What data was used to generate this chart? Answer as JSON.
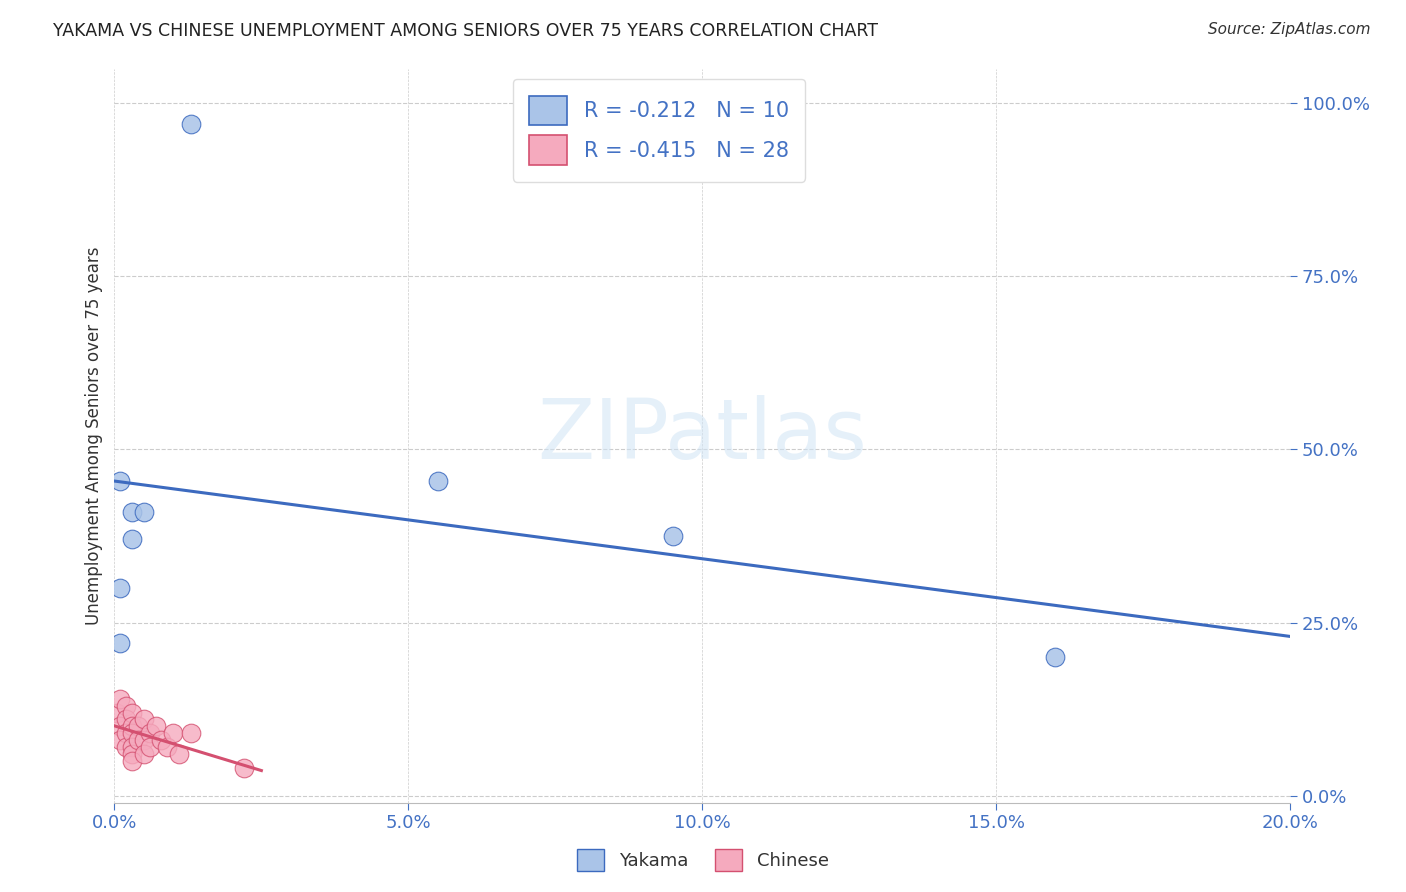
{
  "title": "YAKAMA VS CHINESE UNEMPLOYMENT AMONG SENIORS OVER 75 YEARS CORRELATION CHART",
  "source": "Source: ZipAtlas.com",
  "ylabel": "Unemployment Among Seniors over 75 years",
  "yakama_R": -0.212,
  "yakama_N": 10,
  "chinese_R": -0.415,
  "chinese_N": 28,
  "yakama_color": "#aac4e8",
  "chinese_color": "#f5aabe",
  "yakama_line_color": "#3c6abf",
  "chinese_line_color": "#d45070",
  "yakama_x": [
    0.001,
    0.003,
    0.005,
    0.003,
    0.001,
    0.001,
    0.055,
    0.095,
    0.16,
    0.013
  ],
  "yakama_y": [
    0.455,
    0.41,
    0.41,
    0.37,
    0.3,
    0.22,
    0.455,
    0.375,
    0.2,
    0.97
  ],
  "chinese_x": [
    0.0005,
    0.001,
    0.001,
    0.001,
    0.002,
    0.002,
    0.002,
    0.002,
    0.003,
    0.003,
    0.003,
    0.003,
    0.003,
    0.003,
    0.004,
    0.004,
    0.005,
    0.005,
    0.005,
    0.006,
    0.006,
    0.007,
    0.008,
    0.009,
    0.01,
    0.011,
    0.013,
    0.022
  ],
  "chinese_y": [
    0.12,
    0.14,
    0.1,
    0.08,
    0.13,
    0.11,
    0.09,
    0.07,
    0.12,
    0.1,
    0.09,
    0.07,
    0.06,
    0.05,
    0.1,
    0.08,
    0.11,
    0.08,
    0.06,
    0.09,
    0.07,
    0.1,
    0.08,
    0.07,
    0.09,
    0.06,
    0.09,
    0.04
  ],
  "xlim": [
    0.0,
    0.2
  ],
  "ylim": [
    -0.01,
    1.05
  ],
  "xticks": [
    0.0,
    0.05,
    0.1,
    0.15,
    0.2
  ],
  "xticklabels": [
    "0.0%",
    "5.0%",
    "10.0%",
    "15.0%",
    "20.0%"
  ],
  "yticks": [
    0.0,
    0.25,
    0.5,
    0.75,
    1.0
  ],
  "yticklabels": [
    "0.0%",
    "25.0%",
    "50.0%",
    "75.0%",
    "100.0%"
  ],
  "bottom_legend_labels": [
    "Yakama",
    "Chinese"
  ],
  "watermark_text": "ZIPatlas"
}
